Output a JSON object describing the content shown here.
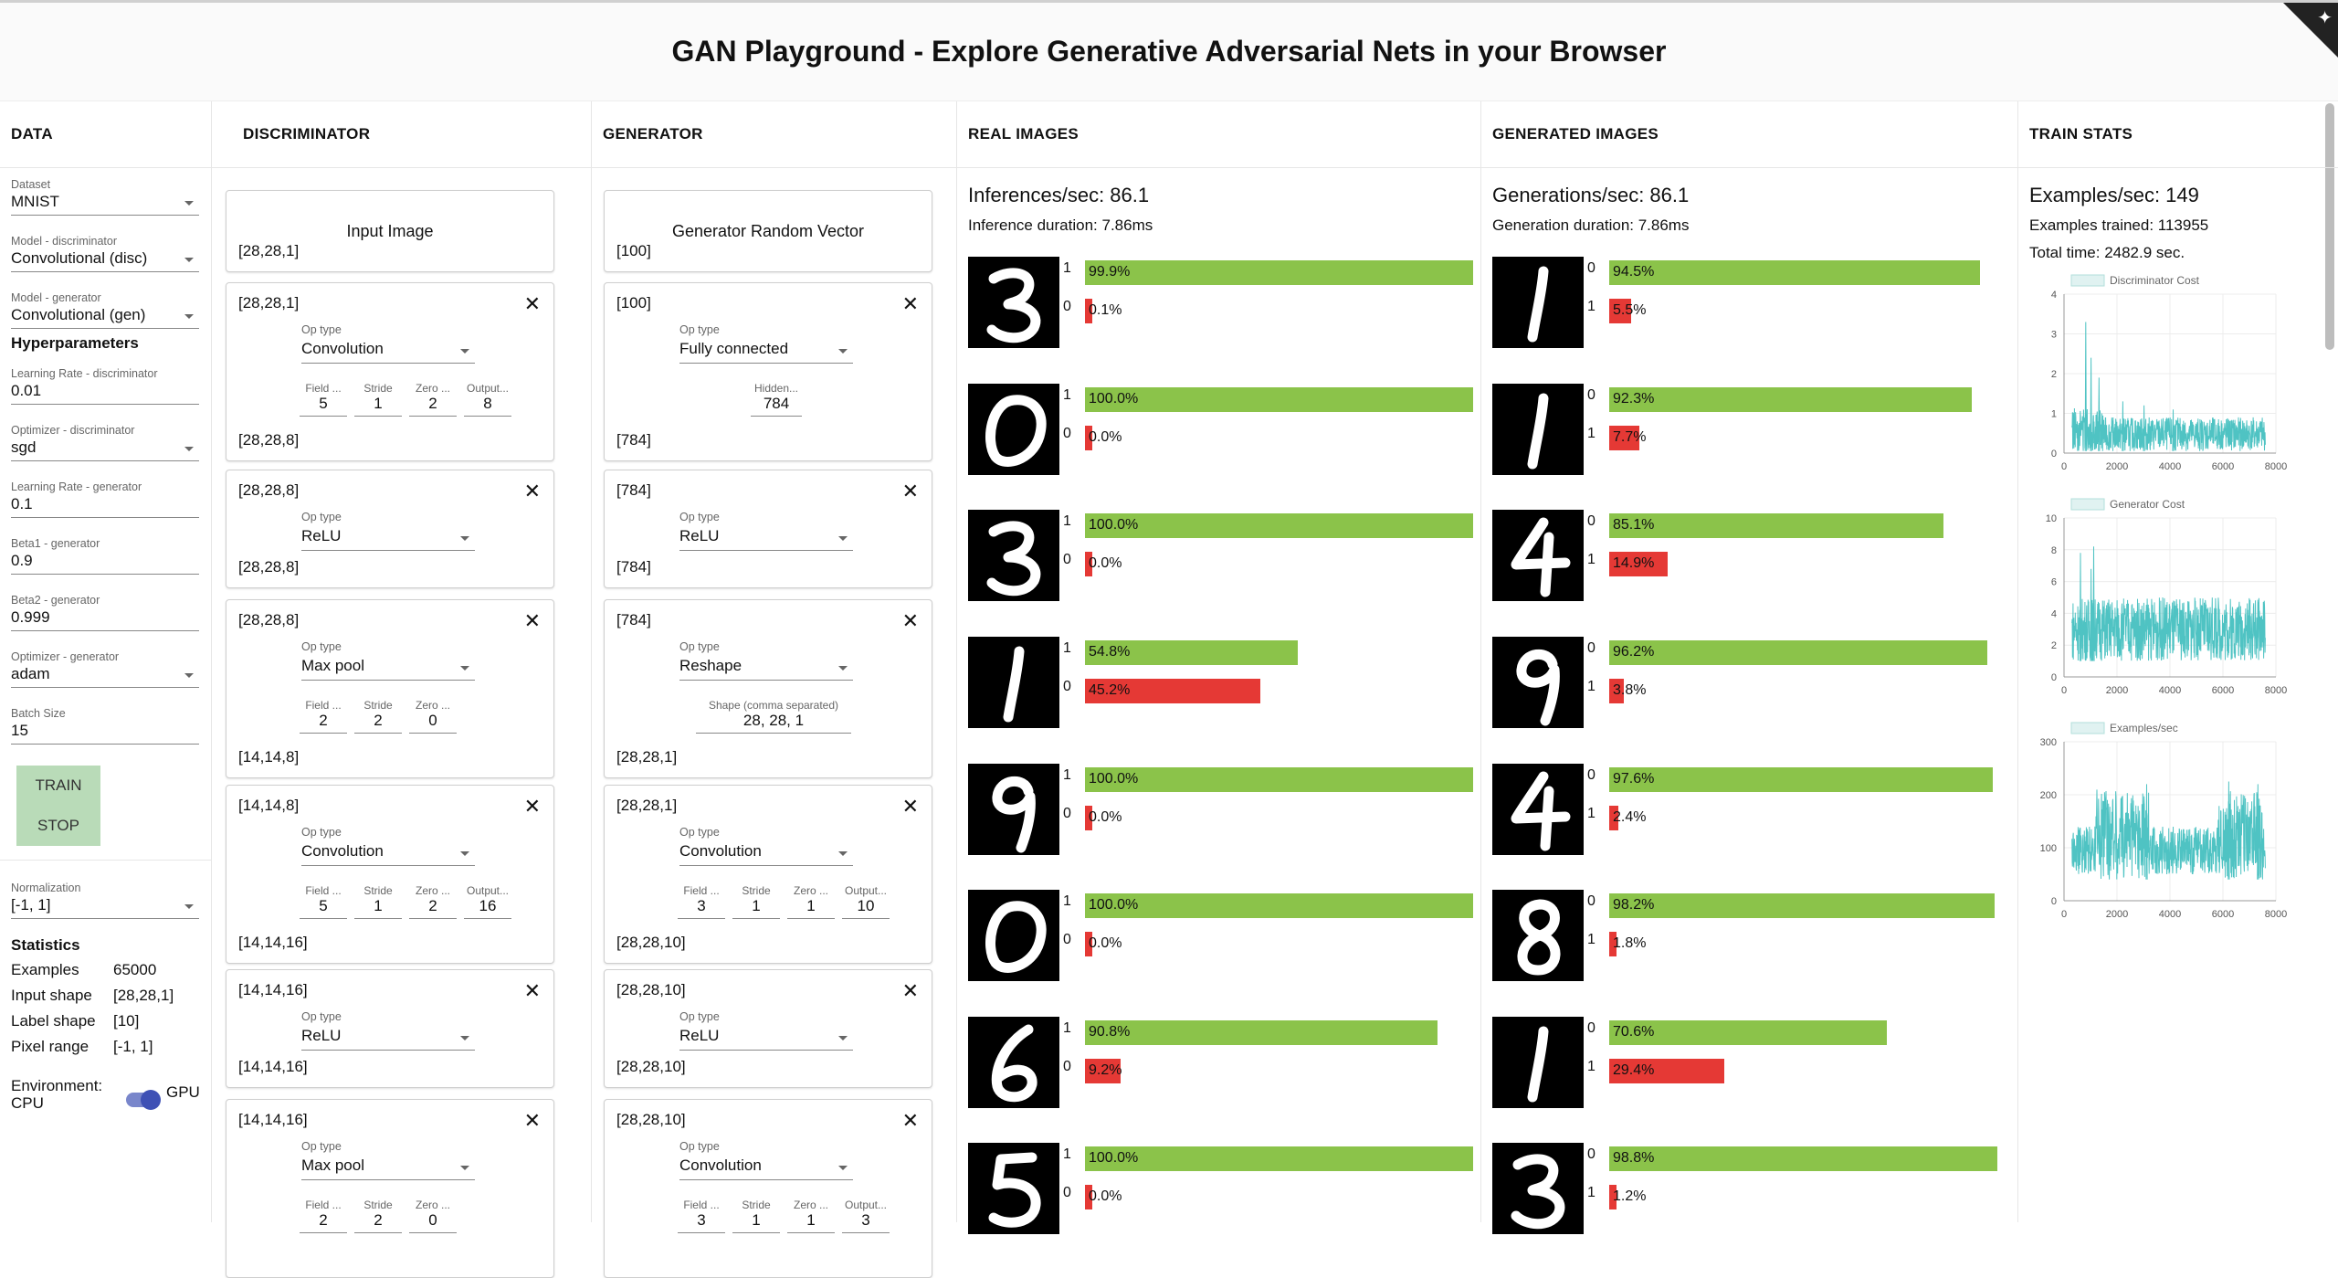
{
  "header": {
    "title": "GAN Playground - Explore Generative Adversarial Nets in your Browser"
  },
  "columns": {
    "data": "DATA",
    "discriminator": "DISCRIMINATOR",
    "generator": "GENERATOR",
    "real": "REAL IMAGES",
    "generated": "GENERATED IMAGES",
    "train": "TRAIN STATS"
  },
  "data_panel": {
    "fields": [
      {
        "label": "Dataset",
        "value": "MNIST",
        "dropdown": true
      },
      {
        "label": "Model - discriminator",
        "value": "Convolutional (disc)",
        "dropdown": true
      },
      {
        "label": "Model - generator",
        "value": "Convolutional (gen)",
        "dropdown": true
      }
    ],
    "hyper_title": "Hyperparameters",
    "hyper": [
      {
        "label": "Learning Rate - discriminator",
        "value": "0.01",
        "dropdown": false
      },
      {
        "label": "Optimizer - discriminator",
        "value": "sgd",
        "dropdown": true
      },
      {
        "label": "Learning Rate - generator",
        "value": "0.1",
        "dropdown": false
      },
      {
        "label": "Beta1 - generator",
        "value": "0.9",
        "dropdown": false
      },
      {
        "label": "Beta2 - generator",
        "value": "0.999",
        "dropdown": false
      },
      {
        "label": "Optimizer - generator",
        "value": "adam",
        "dropdown": true
      },
      {
        "label": "Batch Size",
        "value": "15",
        "dropdown": false
      }
    ],
    "train_label": "TRAIN",
    "stop_label": "STOP",
    "normalization": {
      "label": "Normalization",
      "value": "[-1, 1]"
    },
    "stats_title": "Statistics",
    "stats": [
      {
        "k": "Examples",
        "v": "65000"
      },
      {
        "k": "Input shape",
        "v": "[28,28,1]"
      },
      {
        "k": "Label shape",
        "v": "[10]"
      },
      {
        "k": "Pixel range",
        "v": "[-1, 1]"
      }
    ],
    "env_label": "Environment:",
    "env_cpu": "CPU",
    "env_gpu": "GPU"
  },
  "discriminator": {
    "input": {
      "title": "Input Image",
      "shape": "[28,28,1]"
    },
    "layers": [
      {
        "in": "[28,28,1]",
        "op": "Convolution",
        "params": [
          {
            "l": "Field ...",
            "v": "5"
          },
          {
            "l": "Stride",
            "v": "1"
          },
          {
            "l": "Zero ...",
            "v": "2"
          },
          {
            "l": "Output...",
            "v": "8"
          }
        ],
        "out": "[28,28,8]"
      },
      {
        "in": "[28,28,8]",
        "op": "ReLU",
        "params": [],
        "out": "[28,28,8]"
      },
      {
        "in": "[28,28,8]",
        "op": "Max pool",
        "params": [
          {
            "l": "Field ...",
            "v": "2"
          },
          {
            "l": "Stride",
            "v": "2"
          },
          {
            "l": "Zero ...",
            "v": "0"
          }
        ],
        "out": "[14,14,8]"
      },
      {
        "in": "[14,14,8]",
        "op": "Convolution",
        "params": [
          {
            "l": "Field ...",
            "v": "5"
          },
          {
            "l": "Stride",
            "v": "1"
          },
          {
            "l": "Zero ...",
            "v": "2"
          },
          {
            "l": "Output...",
            "v": "16"
          }
        ],
        "out": "[14,14,16]"
      },
      {
        "in": "[14,14,16]",
        "op": "ReLU",
        "params": [],
        "out": "[14,14,16]"
      },
      {
        "in": "[14,14,16]",
        "op": "Max pool",
        "params": [
          {
            "l": "Field ...",
            "v": "2"
          },
          {
            "l": "Stride",
            "v": "2"
          },
          {
            "l": "Zero ...",
            "v": "0"
          }
        ],
        "out": ""
      }
    ],
    "optype_label": "Op type"
  },
  "generator": {
    "input": {
      "title": "Generator Random Vector",
      "shape": "[100]"
    },
    "layers": [
      {
        "in": "[100]",
        "op": "Fully connected",
        "params": [
          {
            "l": "Hidden...",
            "v": "784"
          }
        ],
        "out": "[784]"
      },
      {
        "in": "[784]",
        "op": "ReLU",
        "params": [],
        "out": "[784]"
      },
      {
        "in": "[784]",
        "op": "Reshape",
        "params": [
          {
            "l": "Shape (comma separated)",
            "v": "28, 28, 1"
          }
        ],
        "out": "[28,28,1]"
      },
      {
        "in": "[28,28,1]",
        "op": "Convolution",
        "params": [
          {
            "l": "Field ...",
            "v": "3"
          },
          {
            "l": "Stride",
            "v": "1"
          },
          {
            "l": "Zero ...",
            "v": "1"
          },
          {
            "l": "Output...",
            "v": "10"
          }
        ],
        "out": "[28,28,10]"
      },
      {
        "in": "[28,28,10]",
        "op": "ReLU",
        "params": [],
        "out": "[28,28,10]"
      },
      {
        "in": "[28,28,10]",
        "op": "Convolution",
        "params": [
          {
            "l": "Field ...",
            "v": "3"
          },
          {
            "l": "Stride",
            "v": "1"
          },
          {
            "l": "Zero ...",
            "v": "1"
          },
          {
            "l": "Output...",
            "v": "3"
          }
        ],
        "out": ""
      }
    ],
    "optype_label": "Op type"
  },
  "real": {
    "rate": "Inferences/sec: 86.1",
    "duration": "Inference duration: 7.86ms",
    "rows": [
      {
        "digit": "3",
        "top": {
          "lab": "1",
          "pct": "99.9%",
          "frac": 0.999
        },
        "bot": {
          "lab": "0",
          "pct": "0.1%",
          "frac": 0.001
        }
      },
      {
        "digit": "0",
        "top": {
          "lab": "1",
          "pct": "100.0%",
          "frac": 1.0
        },
        "bot": {
          "lab": "0",
          "pct": "0.0%",
          "frac": 0.0
        }
      },
      {
        "digit": "3",
        "top": {
          "lab": "1",
          "pct": "100.0%",
          "frac": 1.0
        },
        "bot": {
          "lab": "0",
          "pct": "0.0%",
          "frac": 0.0
        }
      },
      {
        "digit": "1",
        "top": {
          "lab": "1",
          "pct": "54.8%",
          "frac": 0.548
        },
        "bot": {
          "lab": "0",
          "pct": "45.2%",
          "frac": 0.452
        }
      },
      {
        "digit": "9",
        "top": {
          "lab": "1",
          "pct": "100.0%",
          "frac": 1.0
        },
        "bot": {
          "lab": "0",
          "pct": "0.0%",
          "frac": 0.0
        }
      },
      {
        "digit": "0",
        "top": {
          "lab": "1",
          "pct": "100.0%",
          "frac": 1.0
        },
        "bot": {
          "lab": "0",
          "pct": "0.0%",
          "frac": 0.0
        }
      },
      {
        "digit": "6",
        "top": {
          "lab": "1",
          "pct": "90.8%",
          "frac": 0.908
        },
        "bot": {
          "lab": "0",
          "pct": "9.2%",
          "frac": 0.092
        }
      },
      {
        "digit": "5",
        "top": {
          "lab": "1",
          "pct": "100.0%",
          "frac": 1.0
        },
        "bot": {
          "lab": "0",
          "pct": "0.0%",
          "frac": 0.0
        }
      }
    ]
  },
  "generated": {
    "rate": "Generations/sec: 86.1",
    "duration": "Generation duration: 7.86ms",
    "rows": [
      {
        "digit": "1",
        "top": {
          "lab": "0",
          "pct": "94.5%",
          "frac": 0.945
        },
        "bot": {
          "lab": "1",
          "pct": "5.5%",
          "frac": 0.055
        }
      },
      {
        "digit": "1",
        "top": {
          "lab": "0",
          "pct": "92.3%",
          "frac": 0.923
        },
        "bot": {
          "lab": "1",
          "pct": "7.7%",
          "frac": 0.077
        }
      },
      {
        "digit": "4",
        "top": {
          "lab": "0",
          "pct": "85.1%",
          "frac": 0.851
        },
        "bot": {
          "lab": "1",
          "pct": "14.9%",
          "frac": 0.149
        }
      },
      {
        "digit": "9",
        "top": {
          "lab": "0",
          "pct": "96.2%",
          "frac": 0.962
        },
        "bot": {
          "lab": "1",
          "pct": "3.8%",
          "frac": 0.038
        }
      },
      {
        "digit": "4",
        "top": {
          "lab": "0",
          "pct": "97.6%",
          "frac": 0.976
        },
        "bot": {
          "lab": "1",
          "pct": "2.4%",
          "frac": 0.024
        }
      },
      {
        "digit": "8",
        "top": {
          "lab": "0",
          "pct": "98.2%",
          "frac": 0.982
        },
        "bot": {
          "lab": "1",
          "pct": "1.8%",
          "frac": 0.018
        }
      },
      {
        "digit": "1",
        "top": {
          "lab": "0",
          "pct": "70.6%",
          "frac": 0.706
        },
        "bot": {
          "lab": "1",
          "pct": "29.4%",
          "frac": 0.294
        }
      },
      {
        "digit": "3",
        "top": {
          "lab": "0",
          "pct": "98.8%",
          "frac": 0.988
        },
        "bot": {
          "lab": "1",
          "pct": "1.2%",
          "frac": 0.012
        }
      }
    ]
  },
  "train": {
    "rate": "Examples/sec: 149",
    "trained": "Examples trained: 113955",
    "time": "Total time: 2482.9 sec."
  },
  "colors": {
    "green": "#8bc34a",
    "red": "#e53935",
    "teal": "#4fc3c3",
    "accent": "#3f51b5"
  },
  "chart_data": [
    {
      "type": "line",
      "title": "",
      "series": [
        {
          "name": "Discriminator Cost",
          "values": []
        }
      ],
      "xticks": [
        "0",
        "2000",
        "4000",
        "6000",
        "8000"
      ],
      "yticks": [
        "0",
        "1",
        "2",
        "3",
        "4"
      ],
      "xlim": [
        0,
        8000
      ],
      "ylim": [
        0,
        4
      ],
      "range": [
        0.05,
        0.9
      ],
      "spikes": [
        [
          800,
          3.3
        ],
        [
          1000,
          2.4
        ],
        [
          1300,
          1.9
        ],
        [
          2200,
          1.3
        ],
        [
          3000,
          1.2
        ],
        [
          4100,
          1.1
        ]
      ],
      "legend": "top"
    },
    {
      "type": "line",
      "title": "",
      "series": [
        {
          "name": "Generator Cost",
          "values": []
        }
      ],
      "xticks": [
        "0",
        "2000",
        "4000",
        "6000",
        "8000"
      ],
      "yticks": [
        "0",
        "2",
        "4",
        "6",
        "8",
        "10"
      ],
      "xlim": [
        0,
        8000
      ],
      "ylim": [
        0,
        10
      ],
      "range": [
        1,
        5
      ],
      "spikes": [
        [
          1100,
          8.2
        ],
        [
          600,
          7.8
        ],
        [
          1000,
          6.8
        ]
      ],
      "legend": "top"
    },
    {
      "type": "line",
      "title": "",
      "series": [
        {
          "name": "Examples/sec",
          "values": []
        }
      ],
      "xticks": [
        "0",
        "2000",
        "4000",
        "6000",
        "8000"
      ],
      "yticks": [
        "0",
        "100",
        "200",
        "300"
      ],
      "xlim": [
        0,
        8000
      ],
      "ylim": [
        0,
        300
      ],
      "range": [
        40,
        200
      ],
      "spikes": [
        [
          3100,
          220
        ],
        [
          6200,
          225
        ],
        [
          7300,
          220
        ]
      ],
      "legend": "top"
    }
  ]
}
